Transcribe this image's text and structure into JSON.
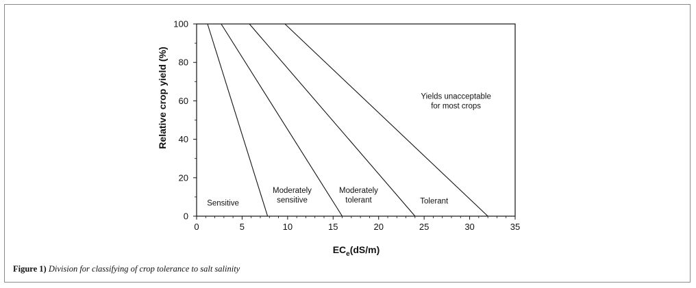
{
  "chart_data": {
    "type": "line",
    "xlabel_main": "EC",
    "xlabel_sub": "e",
    "xlabel_unit": "(dS/m)",
    "ylabel": "Relative crop yield (%)",
    "xlim": [
      0,
      35
    ],
    "ylim": [
      0,
      100
    ],
    "x_ticks": [
      "0",
      "5",
      "10",
      "15",
      "20",
      "25",
      "30",
      "35"
    ],
    "y_ticks": [
      "0",
      "20",
      "40",
      "60",
      "80",
      "100"
    ],
    "grid": false,
    "series": [
      {
        "x": [
          1.2,
          7.8
        ],
        "y": [
          100,
          0
        ]
      },
      {
        "x": [
          2.7,
          16.0
        ],
        "y": [
          100,
          0
        ]
      },
      {
        "x": [
          5.8,
          24.0
        ],
        "y": [
          100,
          0
        ]
      },
      {
        "x": [
          9.7,
          32.0
        ],
        "y": [
          100,
          0
        ]
      }
    ],
    "annotations": [
      {
        "lines": [
          "Sensitive"
        ],
        "x": 2.9,
        "y": 7
      },
      {
        "lines": [
          "Moderately",
          "sensitive"
        ],
        "x": 10.5,
        "y": 11
      },
      {
        "lines": [
          "Moderately",
          "tolerant"
        ],
        "x": 17.8,
        "y": 11
      },
      {
        "lines": [
          "Tolerant"
        ],
        "x": 26.1,
        "y": 8
      },
      {
        "lines": [
          "Yields unacceptable",
          "for most crops"
        ],
        "x": 28.5,
        "y": 60
      }
    ]
  },
  "caption": {
    "figure_label": "Figure 1)",
    "text": "Division for classifying of crop tolerance to salt salinity"
  }
}
